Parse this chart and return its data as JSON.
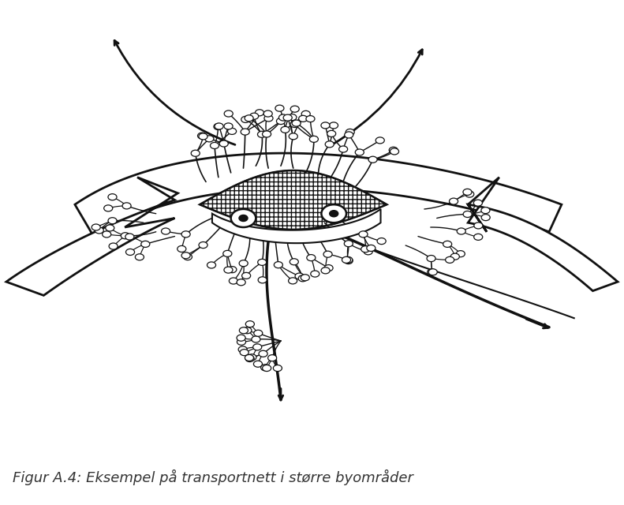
{
  "background_color": "#cecece",
  "figure_bg": "#ffffff",
  "caption": "Figur A.4: Eksempel på transportnett i større byområder",
  "caption_fontsize": 13,
  "caption_style": "italic",
  "line_color": "#111111",
  "white_color": "#ffffff"
}
